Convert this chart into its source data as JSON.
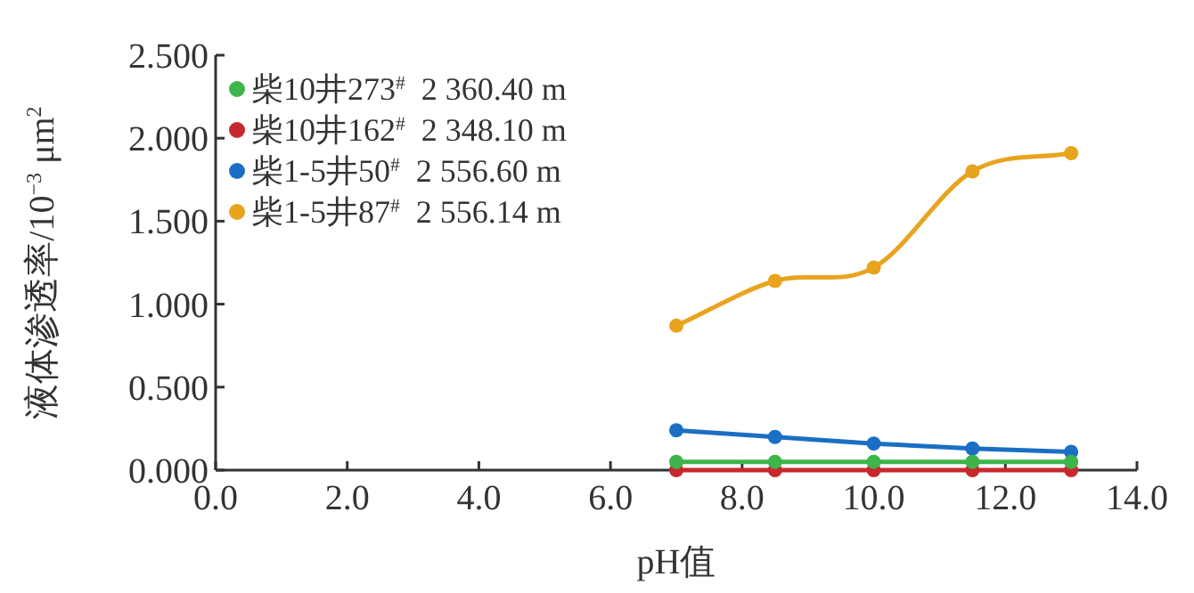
{
  "chart_data": {
    "type": "line",
    "xlabel": "pH值",
    "ylabel": "液体渗透率/10$^{−3}$ μm$^{2}$",
    "x": [
      7.0,
      8.5,
      10.0,
      11.5,
      13.0
    ],
    "series": [
      {
        "name": "柴10井273$^{#}$  2 360.40 m",
        "color": "#3cb54a",
        "values": [
          0.05,
          0.05,
          0.05,
          0.05,
          0.05
        ]
      },
      {
        "name": "柴10井162$^{#}$  2 348.10 m",
        "color": "#c8282d",
        "values": [
          0.0,
          0.0,
          0.0,
          0.0,
          0.0
        ]
      },
      {
        "name": "柴1-5井50$^{#}$  2 556.60 m",
        "color": "#1a6fc4",
        "values": [
          0.24,
          0.2,
          0.16,
          0.13,
          0.11
        ]
      },
      {
        "name": "柴1-5井87$^{#}$  2 556.14 m",
        "color": "#e8a41e",
        "values": [
          0.87,
          1.14,
          1.22,
          1.8,
          1.91
        ]
      }
    ],
    "xlim": [
      0,
      14
    ],
    "xticks": [
      {
        "value": 0,
        "label": "0.0"
      },
      {
        "value": 2,
        "label": "2.0"
      },
      {
        "value": 4,
        "label": "4.0"
      },
      {
        "value": 6,
        "label": "6.0"
      },
      {
        "value": 8,
        "label": "8.0"
      },
      {
        "value": 10,
        "label": "10.0"
      },
      {
        "value": 12,
        "label": "12.0"
      },
      {
        "value": 14,
        "label": "14.0"
      }
    ],
    "ylim": [
      0,
      2.5
    ],
    "yticks": [
      {
        "value": 0,
        "label": "0.000"
      },
      {
        "value": 0.5,
        "label": "0.500"
      },
      {
        "value": 1,
        "label": "1.000"
      },
      {
        "value": 1.5,
        "label": "1.500"
      },
      {
        "value": 2,
        "label": "2.000"
      },
      {
        "value": 2.5,
        "label": "2.500"
      }
    ],
    "grid": false,
    "legend": "top left",
    "marker": "circle",
    "line_style": "solid"
  }
}
